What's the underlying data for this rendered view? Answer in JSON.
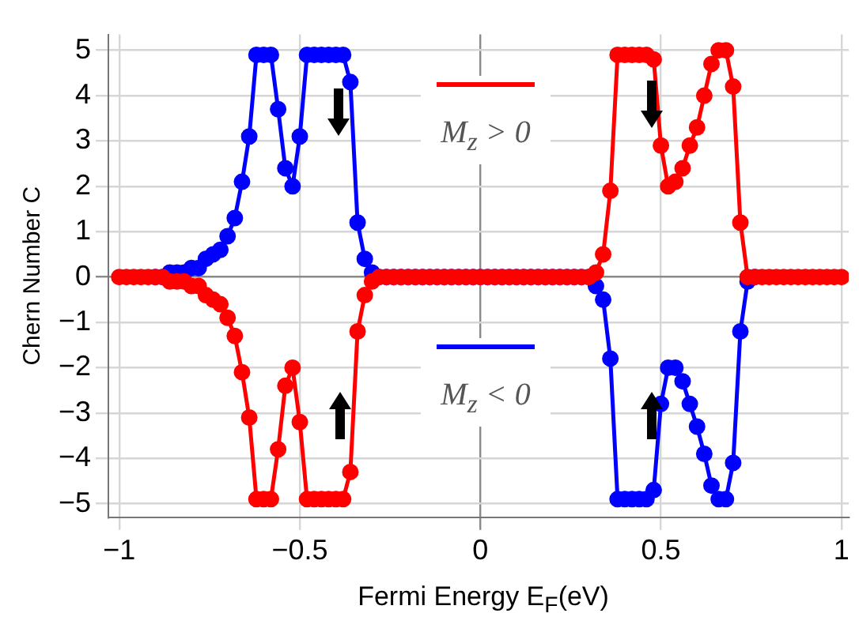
{
  "chart_data": {
    "type": "line",
    "xlabel": "Fermi Energy E$_{F}$(eV)",
    "ylabel": "Chern Number C",
    "x": [
      -1,
      -0.98,
      -0.96,
      -0.94,
      -0.92,
      -0.9,
      -0.88,
      -0.86,
      -0.84,
      -0.82,
      -0.8,
      -0.78,
      -0.76,
      -0.74,
      -0.72,
      -0.7,
      -0.68,
      -0.66,
      -0.64,
      -0.62,
      -0.6,
      -0.58,
      -0.56,
      -0.54,
      -0.52,
      -0.5,
      -0.48,
      -0.46,
      -0.44,
      -0.42,
      -0.4,
      -0.38,
      -0.36,
      -0.34,
      -0.32,
      -0.3,
      -0.28,
      -0.26,
      -0.24,
      -0.22,
      -0.2,
      -0.18,
      -0.16,
      -0.14,
      -0.12,
      -0.1,
      -0.08,
      -0.06,
      -0.04,
      -0.02,
      0,
      0.02,
      0.04,
      0.06,
      0.08,
      0.1,
      0.12,
      0.14,
      0.16,
      0.18,
      0.2,
      0.22,
      0.24,
      0.26,
      0.28,
      0.3,
      0.32,
      0.34,
      0.36,
      0.38,
      0.4,
      0.42,
      0.44,
      0.46,
      0.48,
      0.5,
      0.52,
      0.54,
      0.56,
      0.58,
      0.6,
      0.62,
      0.64,
      0.66,
      0.68,
      0.7,
      0.72,
      0.74,
      0.76,
      0.78,
      0.8,
      0.82,
      0.84,
      0.86,
      0.88,
      0.9,
      0.92,
      0.94,
      0.96,
      0.98,
      1
    ],
    "series": [
      {
        "name": "M$_{z}$ > 0",
        "color": "#ff0000",
        "values": [
          0,
          0,
          0,
          0,
          0,
          0,
          0,
          -0.1,
          -0.1,
          -0.1,
          -0.2,
          -0.2,
          -0.4,
          -0.5,
          -0.6,
          -0.9,
          -1.3,
          -2.1,
          -3.1,
          -4.9,
          -4.9,
          -4.9,
          -3.8,
          -2.4,
          -2.0,
          -3.2,
          -4.9,
          -4.9,
          -4.9,
          -4.9,
          -4.9,
          -4.9,
          -4.3,
          -1.2,
          -0.4,
          -0.1,
          0,
          0,
          0,
          0,
          0,
          0,
          0,
          0,
          0,
          0,
          0,
          0,
          0,
          0,
          0,
          0,
          0,
          0,
          0,
          0,
          0,
          0,
          0,
          0,
          0,
          0,
          0,
          0,
          0,
          0,
          0.1,
          0.5,
          1.9,
          4.9,
          4.9,
          4.9,
          4.9,
          4.9,
          4.8,
          2.9,
          2.0,
          2.1,
          2.4,
          2.9,
          3.3,
          4.0,
          4.7,
          5.0,
          5.0,
          4.2,
          1.2,
          0,
          0,
          0,
          0,
          0,
          0,
          0,
          0,
          0,
          0,
          0,
          0,
          0,
          0
        ]
      },
      {
        "name": "M$_{z}$ < 0",
        "color": "#0000ff",
        "values": [
          null,
          null,
          null,
          null,
          null,
          0,
          0,
          0.1,
          0.1,
          0.1,
          0.2,
          0.2,
          0.4,
          0.5,
          0.6,
          0.9,
          1.3,
          2.1,
          3.1,
          4.9,
          4.9,
          4.9,
          3.7,
          2.4,
          2.0,
          3.1,
          4.9,
          4.9,
          4.9,
          4.9,
          4.9,
          4.9,
          4.3,
          1.2,
          0.4,
          0.1,
          0,
          0,
          0,
          0,
          0,
          0,
          0,
          0,
          0,
          0,
          0,
          0,
          0,
          0,
          0,
          0,
          0,
          0,
          0,
          0,
          0,
          0,
          0,
          0,
          0,
          0,
          0,
          0,
          0,
          0,
          -0.2,
          -0.5,
          -1.8,
          -4.9,
          -4.9,
          -4.9,
          -4.9,
          -4.9,
          -4.7,
          -2.8,
          -2.0,
          -2.0,
          -2.3,
          -2.8,
          -3.3,
          -3.9,
          -4.6,
          -4.9,
          -4.9,
          -4.1,
          -1.2,
          -0.1,
          0,
          null,
          null,
          null,
          null,
          null,
          null,
          null,
          null,
          null,
          null,
          null,
          null
        ]
      }
    ],
    "xlim": [
      -1.03,
      1.02
    ],
    "ylim": [
      -5.3,
      5.35
    ],
    "xticks": [
      {
        "value": -1,
        "label": "−1"
      },
      {
        "value": -0.5,
        "label": "−0.5"
      },
      0,
      0.5,
      1
    ],
    "yticks": [
      {
        "value": -5,
        "label": "−5"
      },
      {
        "value": -4,
        "label": "−4"
      },
      {
        "value": -3,
        "label": "−3"
      },
      {
        "value": -2,
        "label": "−2"
      },
      {
        "value": -1,
        "label": "−1"
      },
      0,
      1,
      2,
      3,
      4,
      5
    ],
    "grid": true,
    "legend": "center",
    "marker": "circle",
    "line_style": "solid"
  }
}
